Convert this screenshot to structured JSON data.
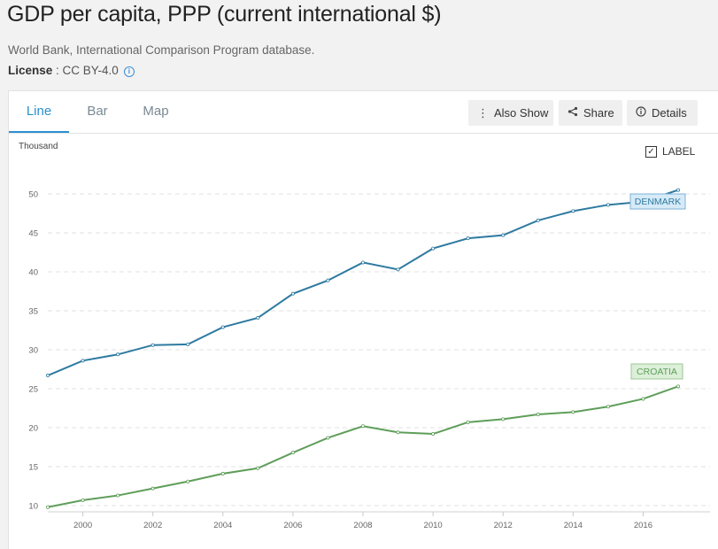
{
  "header": {
    "title": "GDP per capita, PPP (current international $)",
    "source": "World Bank, International Comparison Program database.",
    "license_label": "License",
    "license_value": " : CC BY-4.0"
  },
  "tabs": [
    {
      "label": "Line",
      "active": true
    },
    {
      "label": "Bar",
      "active": false
    },
    {
      "label": "Map",
      "active": false
    }
  ],
  "toolbar": {
    "also_show": "Also Show",
    "share": "Share",
    "details": "Details"
  },
  "label_toggle": {
    "label": "LABEL",
    "checked": true
  },
  "icons": {
    "also_show": "vertical-ellipsis-icon",
    "share": "share-icon",
    "details": "info-circle-icon",
    "license_info": "info-icon"
  },
  "chart_data": {
    "type": "line",
    "title": "",
    "y_unit_label": "Thousand",
    "x": [
      1999,
      2000,
      2001,
      2002,
      2003,
      2004,
      2005,
      2006,
      2007,
      2008,
      2009,
      2010,
      2011,
      2012,
      2013,
      2014,
      2015,
      2016,
      2017
    ],
    "x_ticks": [
      2000,
      2002,
      2004,
      2006,
      2008,
      2010,
      2012,
      2014,
      2016
    ],
    "y_ticks": [
      10,
      15,
      20,
      25,
      30,
      35,
      40,
      45,
      50
    ],
    "ylim": [
      10,
      50
    ],
    "grid": "horizontal dashed",
    "series": [
      {
        "name": "DENMARK",
        "color": "#2e7aa0",
        "label_bg": "#d6eaf8",
        "label_border": "#7fb2d8",
        "values": [
          26.7,
          28.6,
          29.4,
          30.6,
          30.7,
          32.9,
          34.1,
          37.2,
          38.9,
          41.2,
          40.3,
          43.0,
          44.3,
          44.7,
          46.6,
          47.8,
          48.6,
          49.0,
          50.5
        ]
      },
      {
        "name": "CROATIA",
        "color": "#5f9e5a",
        "label_bg": "#dcefd8",
        "label_border": "#9cc795",
        "values": [
          9.8,
          10.7,
          11.3,
          12.2,
          13.1,
          14.1,
          14.8,
          16.8,
          18.7,
          20.2,
          19.4,
          19.2,
          20.7,
          21.1,
          21.7,
          22.0,
          22.7,
          23.7,
          25.3
        ]
      }
    ]
  }
}
